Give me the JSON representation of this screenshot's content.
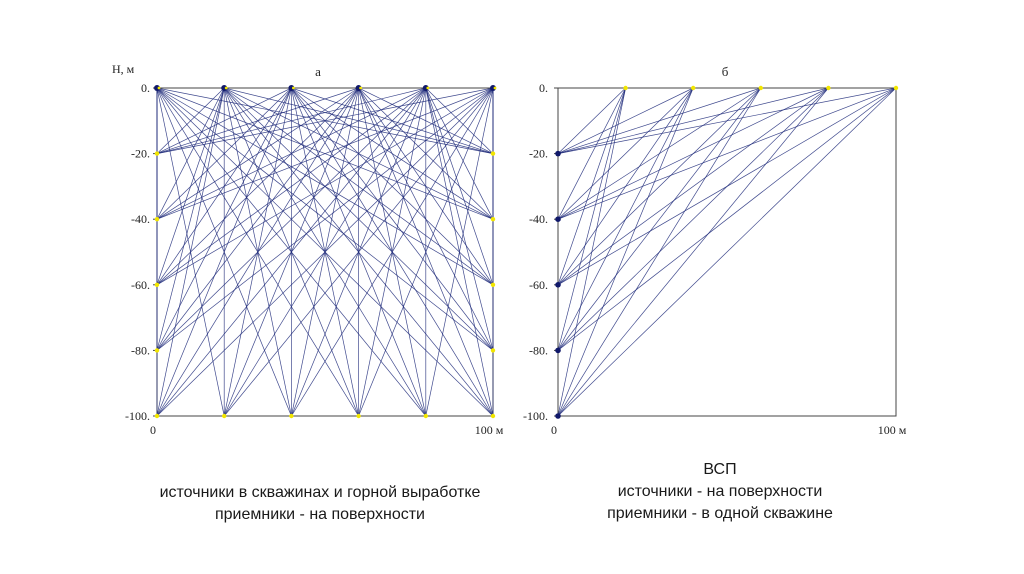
{
  "panels": [
    {
      "title": "а",
      "y_axis_label": "Н, м",
      "y_ticks": [
        "0.",
        "-20.",
        "-40.",
        "-60.",
        "-80.",
        "-100."
      ],
      "x_ticks": [
        "0",
        "100 м"
      ],
      "sources_x_m": [
        0,
        20,
        40,
        60,
        80,
        100
      ],
      "left_well_depths_m": [
        20,
        40,
        60,
        80,
        100
      ],
      "right_well_depths_m": [
        20,
        40,
        60,
        80,
        100
      ],
      "bottom_sources_x_m": [
        20,
        40,
        60,
        80
      ]
    },
    {
      "title": "б",
      "y_ticks": [
        "0.",
        "-20.",
        "-40.",
        "-60.",
        "-80.",
        "-100."
      ],
      "x_ticks": [
        "0",
        "100 м"
      ],
      "sources_x_m": [
        20,
        40,
        60,
        80,
        100
      ],
      "well_receiver_depths_m": [
        20,
        40,
        60,
        80,
        100
      ]
    }
  ],
  "captions": {
    "left": [
      "источники в скважинах и горной выработке",
      "приемники - на поверхности"
    ],
    "right": [
      "ВСП",
      "источники - на поверхности",
      "приемники - в одной скважине"
    ]
  },
  "colors": {
    "ray": "#1f2a7a",
    "frame": "#444444",
    "point": "#f2e600",
    "node": "#10186a"
  }
}
